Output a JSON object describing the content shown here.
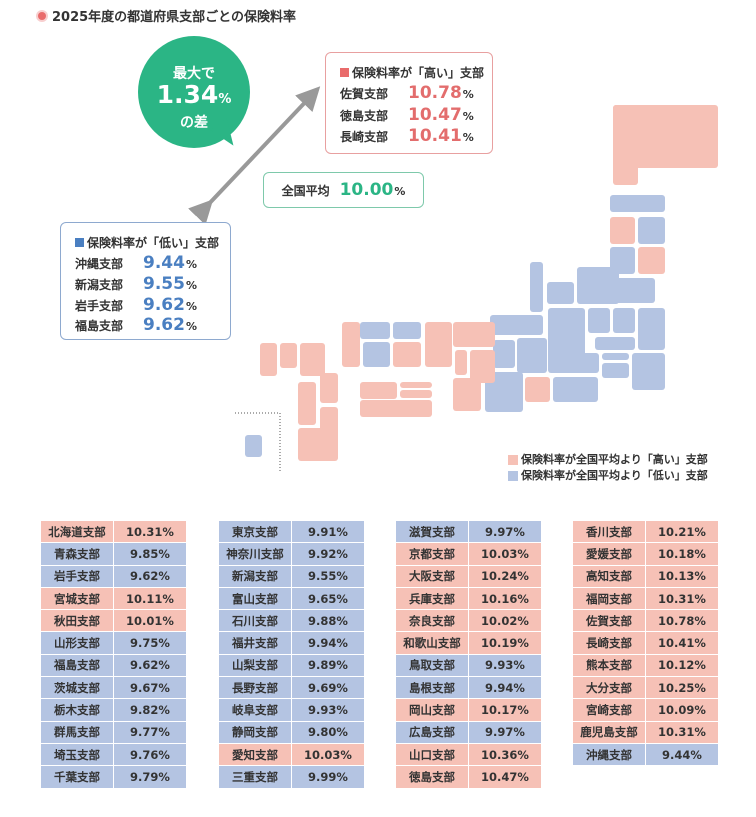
{
  "title": "2025年度の都道府県支部ごとの保険料率",
  "bubble": {
    "line1": "最大で",
    "value": "1.34",
    "unit": "%",
    "line3": "の差"
  },
  "high_box": {
    "heading": "保険料率が「高い」支部",
    "items": [
      {
        "name": "佐賀支部",
        "value": "10.78"
      },
      {
        "name": "徳島支部",
        "value": "10.47"
      },
      {
        "name": "長崎支部",
        "value": "10.41"
      }
    ]
  },
  "low_box": {
    "heading": "保険料率が「低い」支部",
    "items": [
      {
        "name": "沖縄支部",
        "value": "9.44"
      },
      {
        "name": "新潟支部",
        "value": "9.55"
      },
      {
        "name": "岩手支部",
        "value": "9.62"
      },
      {
        "name": "福島支部",
        "value": "9.62"
      }
    ]
  },
  "average": {
    "label": "全国平均",
    "value": "10.00",
    "unit": "%"
  },
  "legend": {
    "high": "保険料率が全国平均より「高い」支部",
    "low": "保険料率が全国平均より「低い」支部"
  },
  "colors": {
    "high": "#f6c1b6",
    "low": "#b4c4e2",
    "accent": "#2bb585"
  },
  "tables": [
    [
      [
        "北海道支部",
        "10.31%"
      ],
      [
        "青森支部",
        "9.85%"
      ],
      [
        "岩手支部",
        "9.62%"
      ],
      [
        "宮城支部",
        "10.11%"
      ],
      [
        "秋田支部",
        "10.01%"
      ],
      [
        "山形支部",
        "9.75%"
      ],
      [
        "福島支部",
        "9.62%"
      ],
      [
        "茨城支部",
        "9.67%"
      ],
      [
        "栃木支部",
        "9.82%"
      ],
      [
        "群馬支部",
        "9.77%"
      ],
      [
        "埼玉支部",
        "9.76%"
      ],
      [
        "千葉支部",
        "9.79%"
      ]
    ],
    [
      [
        "東京支部",
        "9.91%"
      ],
      [
        "神奈川支部",
        "9.92%"
      ],
      [
        "新潟支部",
        "9.55%"
      ],
      [
        "富山支部",
        "9.65%"
      ],
      [
        "石川支部",
        "9.88%"
      ],
      [
        "福井支部",
        "9.94%"
      ],
      [
        "山梨支部",
        "9.89%"
      ],
      [
        "長野支部",
        "9.69%"
      ],
      [
        "岐阜支部",
        "9.93%"
      ],
      [
        "静岡支部",
        "9.80%"
      ],
      [
        "愛知支部",
        "10.03%"
      ],
      [
        "三重支部",
        "9.99%"
      ]
    ],
    [
      [
        "滋賀支部",
        "9.97%"
      ],
      [
        "京都支部",
        "10.03%"
      ],
      [
        "大阪支部",
        "10.24%"
      ],
      [
        "兵庫支部",
        "10.16%"
      ],
      [
        "奈良支部",
        "10.02%"
      ],
      [
        "和歌山支部",
        "10.19%"
      ],
      [
        "鳥取支部",
        "9.93%"
      ],
      [
        "島根支部",
        "9.94%"
      ],
      [
        "岡山支部",
        "10.17%"
      ],
      [
        "広島支部",
        "9.97%"
      ],
      [
        "山口支部",
        "10.36%"
      ],
      [
        "徳島支部",
        "10.47%"
      ]
    ],
    [
      [
        "香川支部",
        "10.21%"
      ],
      [
        "愛媛支部",
        "10.18%"
      ],
      [
        "高知支部",
        "10.13%"
      ],
      [
        "福岡支部",
        "10.31%"
      ],
      [
        "佐賀支部",
        "10.78%"
      ],
      [
        "長崎支部",
        "10.41%"
      ],
      [
        "熊本支部",
        "10.12%"
      ],
      [
        "大分支部",
        "10.25%"
      ],
      [
        "宮崎支部",
        "10.09%"
      ],
      [
        "鹿児島支部",
        "10.31%"
      ],
      [
        "沖縄支部",
        "9.44%"
      ]
    ]
  ]
}
